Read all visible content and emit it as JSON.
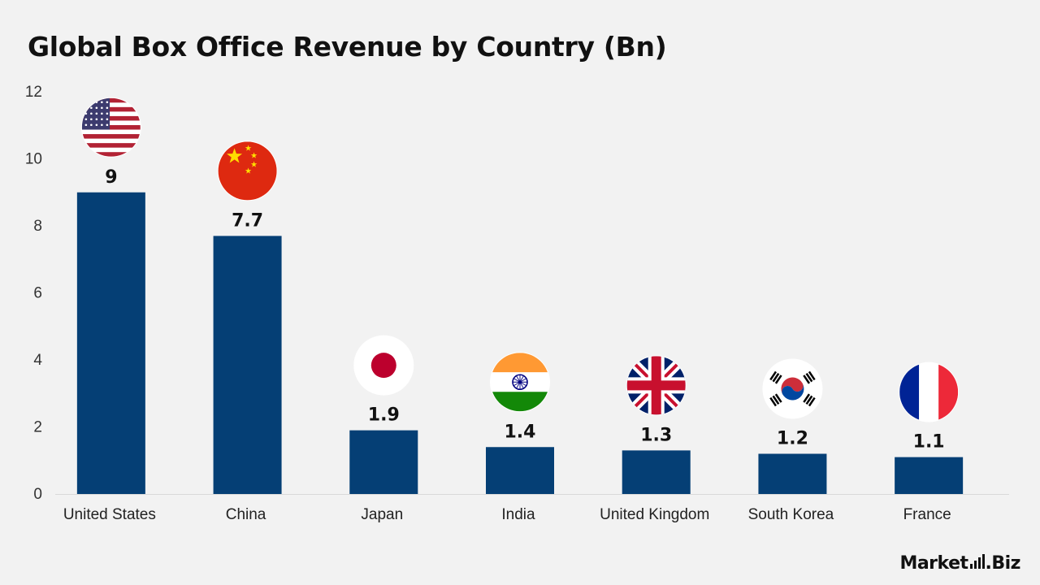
{
  "chart_data": {
    "type": "bar",
    "title": "Global Box Office Revenue by Country (Bn)",
    "categories": [
      "United States",
      "China",
      "Japan",
      "India",
      "United Kingdom",
      "South Korea",
      "France"
    ],
    "values": [
      9,
      7.7,
      1.9,
      1.4,
      1.3,
      1.2,
      1.1
    ],
    "value_labels": [
      "9",
      "7.7",
      "1.9",
      "1.4",
      "1.3",
      "1.2",
      "1.1"
    ],
    "flags": [
      "us-flag",
      "china-flag",
      "japan-flag",
      "india-flag",
      "uk-flag",
      "south-korea-flag",
      "france-flag"
    ],
    "ylim": [
      0,
      12
    ],
    "yticks": [
      0,
      2,
      4,
      6,
      8,
      10,
      12
    ],
    "xlabel": "",
    "ylabel": "",
    "grid": false,
    "bar_color": "#053f75"
  },
  "brand": {
    "name_left": "Market",
    "name_right": "Biz"
  }
}
